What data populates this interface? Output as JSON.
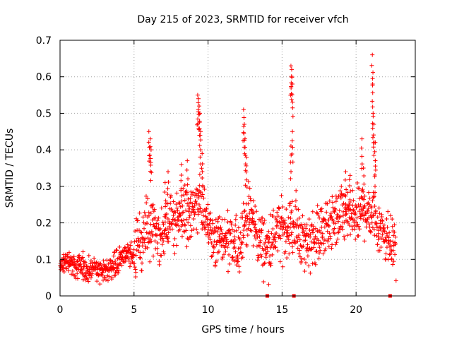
{
  "chart_data": {
    "type": "scatter",
    "title": "Day 215 of 2023, SRMTID for receiver vfch",
    "xlabel": "GPS time / hours",
    "ylabel": "SRMTID / TECUs",
    "xlim": [
      0,
      24
    ],
    "ylim": [
      0,
      0.7
    ],
    "xticks": [
      0,
      5,
      10,
      15,
      20
    ],
    "yticks": [
      0,
      0.1,
      0.2,
      0.3,
      0.4,
      0.5,
      0.6,
      0.7
    ],
    "xtick_labels": [
      "0",
      "5",
      "10",
      "15",
      "20"
    ],
    "ytick_labels": [
      "0",
      "0.1",
      "0.2",
      "0.3",
      "0.4",
      "0.5",
      "0.6",
      "0.7"
    ],
    "grid": true,
    "marker": "+",
    "color": "#ff0000",
    "approximate_trend": [
      {
        "x": 0.0,
        "y": 0.08
      },
      {
        "x": 0.5,
        "y": 0.1
      },
      {
        "x": 1.0,
        "y": 0.08
      },
      {
        "x": 1.5,
        "y": 0.08
      },
      {
        "x": 2.0,
        "y": 0.08
      },
      {
        "x": 2.5,
        "y": 0.07
      },
      {
        "x": 3.0,
        "y": 0.07
      },
      {
        "x": 3.5,
        "y": 0.08
      },
      {
        "x": 4.0,
        "y": 0.1
      },
      {
        "x": 4.5,
        "y": 0.11
      },
      {
        "x": 5.0,
        "y": 0.12
      },
      {
        "x": 5.5,
        "y": 0.15
      },
      {
        "x": 6.0,
        "y": 0.19
      },
      {
        "x": 6.5,
        "y": 0.17
      },
      {
        "x": 7.0,
        "y": 0.17
      },
      {
        "x": 7.5,
        "y": 0.2
      },
      {
        "x": 8.0,
        "y": 0.23
      },
      {
        "x": 8.5,
        "y": 0.22
      },
      {
        "x": 9.0,
        "y": 0.23
      },
      {
        "x": 9.5,
        "y": 0.26
      },
      {
        "x": 10.0,
        "y": 0.19
      },
      {
        "x": 10.5,
        "y": 0.16
      },
      {
        "x": 11.0,
        "y": 0.15
      },
      {
        "x": 11.5,
        "y": 0.14
      },
      {
        "x": 12.0,
        "y": 0.13
      },
      {
        "x": 12.5,
        "y": 0.22
      },
      {
        "x": 13.0,
        "y": 0.21
      },
      {
        "x": 13.5,
        "y": 0.15
      },
      {
        "x": 14.0,
        "y": 0.13
      },
      {
        "x": 14.5,
        "y": 0.17
      },
      {
        "x": 15.0,
        "y": 0.18
      },
      {
        "x": 15.5,
        "y": 0.19
      },
      {
        "x": 16.0,
        "y": 0.19
      },
      {
        "x": 16.5,
        "y": 0.14
      },
      {
        "x": 17.0,
        "y": 0.16
      },
      {
        "x": 17.5,
        "y": 0.17
      },
      {
        "x": 18.0,
        "y": 0.19
      },
      {
        "x": 18.5,
        "y": 0.2
      },
      {
        "x": 19.0,
        "y": 0.22
      },
      {
        "x": 19.5,
        "y": 0.22
      },
      {
        "x": 20.0,
        "y": 0.21
      },
      {
        "x": 20.5,
        "y": 0.24
      },
      {
        "x": 21.0,
        "y": 0.23
      },
      {
        "x": 21.5,
        "y": 0.2
      },
      {
        "x": 22.0,
        "y": 0.17
      },
      {
        "x": 22.5,
        "y": 0.14
      }
    ],
    "spike_points": [
      {
        "x": 6.0,
        "y": 0.45
      },
      {
        "x": 6.1,
        "y": 0.43
      },
      {
        "x": 6.15,
        "y": 0.4
      },
      {
        "x": 7.1,
        "y": 0.31
      },
      {
        "x": 7.3,
        "y": 0.34
      },
      {
        "x": 8.2,
        "y": 0.36
      },
      {
        "x": 8.6,
        "y": 0.37
      },
      {
        "x": 9.3,
        "y": 0.55
      },
      {
        "x": 9.35,
        "y": 0.54
      },
      {
        "x": 9.4,
        "y": 0.52
      },
      {
        "x": 9.45,
        "y": 0.5
      },
      {
        "x": 9.5,
        "y": 0.45
      },
      {
        "x": 9.6,
        "y": 0.39
      },
      {
        "x": 12.4,
        "y": 0.51
      },
      {
        "x": 12.45,
        "y": 0.47
      },
      {
        "x": 12.5,
        "y": 0.43
      },
      {
        "x": 12.6,
        "y": 0.38
      },
      {
        "x": 15.6,
        "y": 0.63
      },
      {
        "x": 15.65,
        "y": 0.62
      },
      {
        "x": 15.7,
        "y": 0.58
      },
      {
        "x": 15.7,
        "y": 0.45
      },
      {
        "x": 15.6,
        "y": 0.41
      },
      {
        "x": 19.3,
        "y": 0.34
      },
      {
        "x": 19.6,
        "y": 0.33
      },
      {
        "x": 20.4,
        "y": 0.43
      },
      {
        "x": 20.5,
        "y": 0.35
      },
      {
        "x": 21.1,
        "y": 0.66
      },
      {
        "x": 21.12,
        "y": 0.58
      },
      {
        "x": 21.15,
        "y": 0.5
      },
      {
        "x": 21.2,
        "y": 0.47
      },
      {
        "x": 21.3,
        "y": 0.42
      },
      {
        "x": 21.3,
        "y": 0.37
      }
    ],
    "zero_markers": [
      {
        "x": 14.0,
        "y": 0
      },
      {
        "x": 15.8,
        "y": 0
      },
      {
        "x": 22.3,
        "y": 0
      }
    ]
  }
}
